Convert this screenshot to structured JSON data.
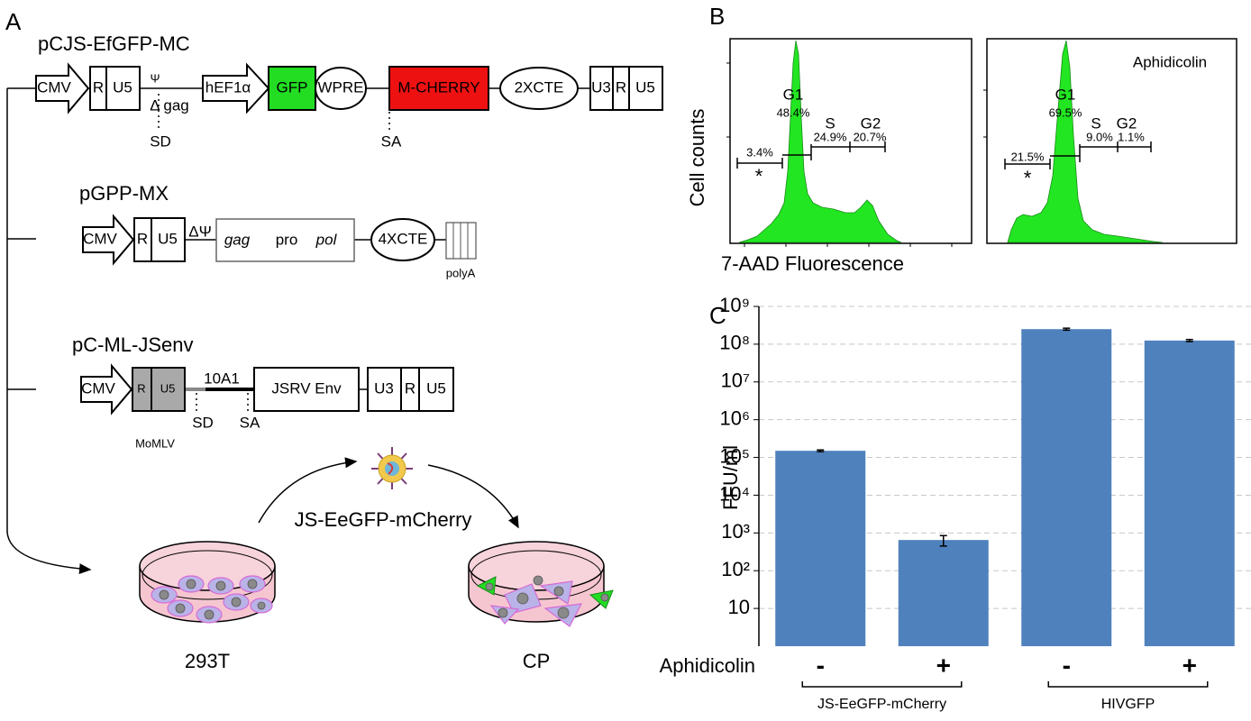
{
  "panel_a": {
    "letter": "A",
    "constructs": [
      {
        "name": "pCJS-EfGFP-MC",
        "elements": [
          "CMV",
          "R",
          "U5",
          "Ψ",
          "Δ gag",
          "SD",
          "hEF1α",
          "GFP",
          "WPRE",
          "M-CHERRY",
          "SA",
          "2XCTE",
          "U3",
          "R",
          "U5"
        ]
      },
      {
        "name": "pGPP-MX",
        "elements": [
          "CMV",
          "R",
          "U5",
          "ΔΨ",
          "gag",
          "pro",
          "pol",
          "4XCTE",
          "polyA"
        ]
      },
      {
        "name": "pC-ML-JSenv",
        "elements": [
          "CMV",
          "R",
          "U5",
          "10A1",
          "SD",
          "SA",
          "JSRV Env",
          "U3",
          "R",
          "U5",
          "MoMLV"
        ]
      }
    ],
    "product": "JS-EeGFP-mCherry",
    "cells": [
      "293T",
      "CP"
    ]
  },
  "panel_b": {
    "letter": "B",
    "y_label": "Cell counts",
    "x_label": "7-AAD Fluorescence",
    "plots": [
      {
        "phases": [
          "G1",
          "S",
          "G2"
        ],
        "percents": [
          "48.4%",
          "24.9%",
          "20.7%",
          "3.4%"
        ],
        "marker": "*"
      },
      {
        "title": "Aphidicolin",
        "phases": [
          "G1",
          "S",
          "G2"
        ],
        "percents": [
          "69.5%",
          "9.0%",
          "1.1%",
          "21.5%"
        ],
        "marker": "*"
      }
    ]
  },
  "chart_data": {
    "type": "bar",
    "letter": "C",
    "y_label": "FFU/ml",
    "x_label": "Aphidicolin",
    "categories": [
      "-",
      "+",
      "-",
      "+"
    ],
    "groups": [
      "JS-EeGFP-mCherry",
      "HIVGFP"
    ],
    "values": [
      150000,
      650,
      250000000,
      125000000
    ],
    "errors": [
      8000,
      200,
      15000000,
      8000000
    ],
    "color": "#4f81bd",
    "log_y": true,
    "grid": true,
    "ylim": [
      1,
      1000000000
    ],
    "yticks": [
      10,
      {
        "value": 100,
        "label": "10²"
      },
      {
        "value": 1000,
        "label": "10³"
      },
      {
        "value": 10000,
        "label": "10⁴"
      },
      {
        "value": 100000,
        "label": "10⁵"
      },
      {
        "value": 1000000,
        "label": "10⁶"
      },
      {
        "value": 10000000,
        "label": "10⁷"
      },
      {
        "value": 100000000,
        "label": "10⁸"
      },
      {
        "value": 1000000000,
        "label": "10⁹"
      }
    ]
  }
}
